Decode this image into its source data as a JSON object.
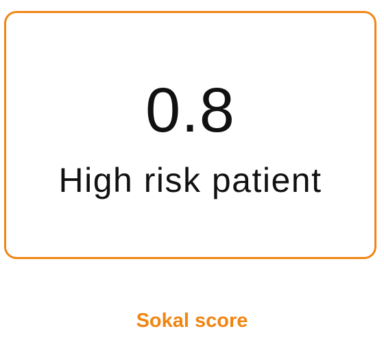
{
  "card": {
    "score": "0.8",
    "risk_label": "High risk patient"
  },
  "metric": {
    "name": "Sokal score"
  },
  "colors": {
    "accent": "#F08512",
    "text": "#111111",
    "background": "#ffffff"
  }
}
